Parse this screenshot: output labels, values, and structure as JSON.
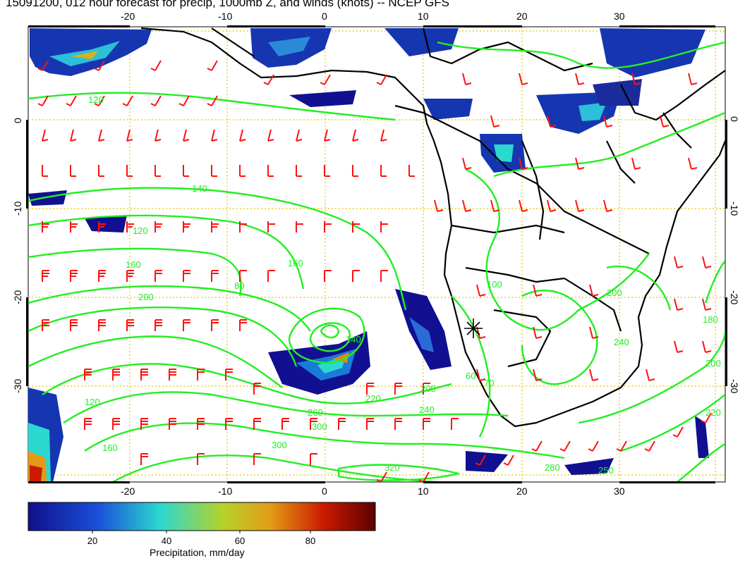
{
  "title": "15091200, 012 hour forecast for precip, 1000mb Z, and winds (knots) -- NCEP GFS",
  "map": {
    "lon_ticks": [
      "-20",
      "-10",
      "0",
      "10",
      "20",
      "30"
    ],
    "lat_ticks_left": [
      "0",
      "-10",
      "-20",
      "-30"
    ],
    "lat_ticks_right": [
      "0",
      "-10",
      "-20",
      "-30"
    ],
    "contour_labels": [
      "120",
      "140",
      "120",
      "160",
      "200",
      "80",
      "160",
      "140",
      "200",
      "220",
      "240",
      "260",
      "300",
      "320",
      "300",
      "280",
      "250",
      "180",
      "200",
      "220",
      "160",
      "120",
      "70",
      "60",
      "200",
      "240",
      "100"
    ],
    "colors": {
      "contour": "#22ee22",
      "barb": "#ff1111",
      "grid": "#e8c400",
      "coast": "#000000",
      "precip_low": "#10108c",
      "precip_mid": "#2bd8d0",
      "precip_high": "#cc1a00"
    }
  },
  "colorbar": {
    "ticks": [
      "20",
      "40",
      "60",
      "80"
    ],
    "label": "Precipitation, mm/day",
    "min": 0,
    "max": 100
  }
}
